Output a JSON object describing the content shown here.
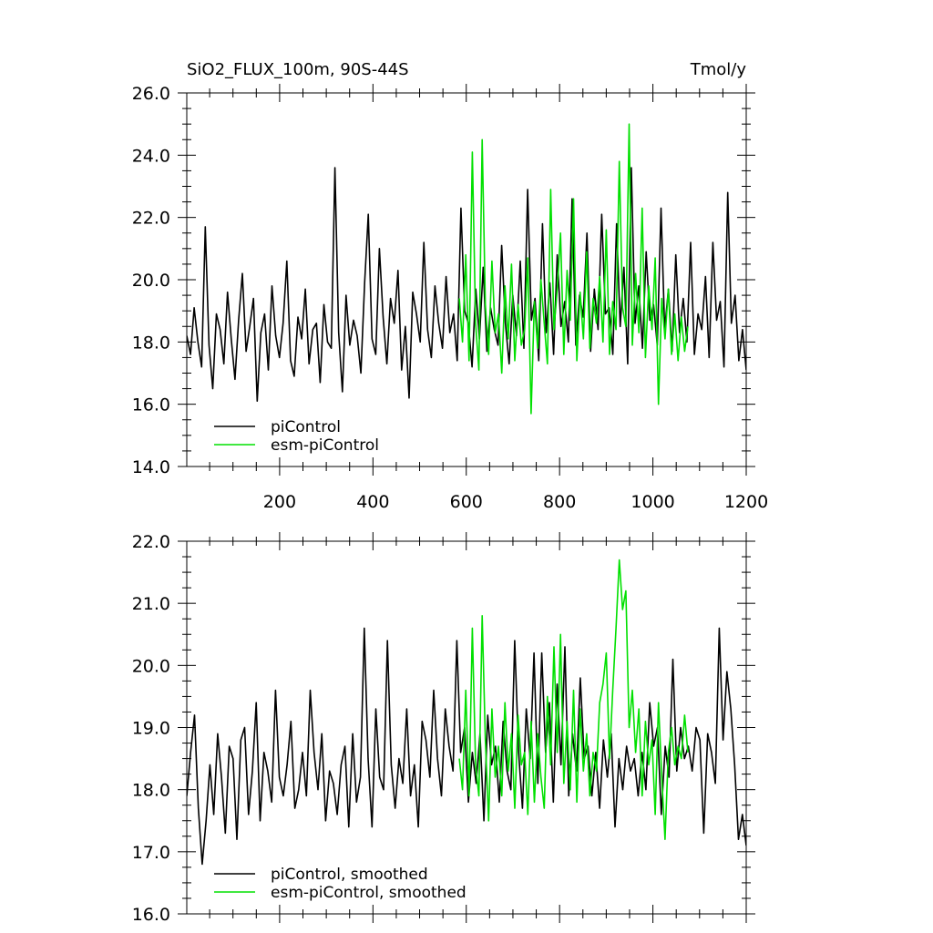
{
  "chart_data": [
    {
      "type": "line",
      "title": "SiO2_FLUX_100m, 90S-44S",
      "units": "Tmol/y",
      "xlim": [
        1,
        1200
      ],
      "ylim": [
        14.0,
        26.0
      ],
      "yticks": [
        "14.0",
        "16.0",
        "18.0",
        "20.0",
        "22.0",
        "24.0",
        "26.0"
      ],
      "xticks": [
        "200",
        "400",
        "600",
        "800",
        "1000",
        "1200"
      ],
      "legend_position": "bottom-left",
      "series": [
        {
          "name": "piControl",
          "color": "#000000",
          "x_start": 1,
          "x_end": 1200,
          "step": 8,
          "values": [
            18.2,
            17.6,
            19.1,
            18.0,
            17.2,
            21.7,
            17.9,
            16.5,
            18.9,
            18.4,
            17.3,
            19.6,
            18.1,
            16.8,
            18.7,
            20.2,
            17.7,
            18.5,
            19.4,
            16.1,
            18.3,
            18.9,
            17.1,
            19.8,
            18.2,
            17.5,
            18.6,
            20.6,
            17.4,
            16.9,
            18.8,
            18.1,
            19.7,
            17.3,
            18.4,
            18.6,
            16.7,
            19.2,
            18.0,
            17.8,
            23.6,
            18.3,
            16.4,
            19.5,
            17.9,
            18.7,
            18.2,
            17.0,
            19.9,
            22.1,
            18.1,
            17.6,
            21.0,
            18.8,
            17.3,
            19.4,
            18.6,
            20.3,
            17.1,
            18.5,
            16.2,
            19.6,
            18.9,
            18.0,
            21.2,
            18.4,
            17.5,
            19.8,
            18.6,
            17.8,
            20.1,
            18.3,
            18.9,
            17.4,
            22.3,
            19.0,
            18.6,
            17.2,
            19.7,
            18.1,
            20.4,
            17.7,
            19.1,
            18.4,
            17.9,
            21.1,
            18.6,
            17.3,
            19.5,
            18.2,
            20.6,
            17.8,
            22.9,
            18.7,
            19.4,
            17.4,
            21.8,
            18.3,
            19.9,
            17.6,
            20.8,
            18.5,
            19.3,
            18.0,
            22.6,
            17.9,
            19.5,
            18.8,
            21.5,
            17.7,
            19.7,
            18.4,
            22.1,
            18.9,
            19.1,
            17.6,
            21.8,
            18.5,
            20.4,
            17.3,
            23.6,
            18.6,
            19.8,
            17.8,
            20.9,
            18.7,
            19.2,
            17.9,
            22.3,
            18.4,
            19.7,
            17.7,
            20.8,
            18.3,
            19.4,
            18.0,
            21.2,
            17.6,
            18.9,
            18.4,
            20.1,
            17.5,
            21.2,
            18.7,
            19.3,
            17.2,
            22.8,
            18.6,
            19.5,
            17.4,
            18.4,
            17.1
          ]
        },
        {
          "name": "esm-piControl",
          "color": "#00e000",
          "x_start": 585,
          "x_end": 1075,
          "step": 7,
          "values": [
            19.4,
            18.0,
            20.8,
            17.4,
            24.1,
            18.6,
            17.1,
            24.5,
            19.2,
            17.6,
            20.6,
            18.3,
            18.9,
            17.0,
            19.8,
            18.1,
            20.5,
            17.4,
            19.2,
            17.9,
            18.4,
            20.7,
            15.7,
            19.3,
            17.8,
            20.0,
            18.6,
            17.3,
            22.9,
            18.4,
            19.7,
            21.5,
            17.6,
            20.3,
            18.7,
            22.6,
            17.4,
            19.6,
            18.1,
            20.9,
            17.8,
            19.4,
            18.6,
            20.1,
            18.0,
            21.6,
            17.6,
            19.3,
            18.4,
            23.8,
            19.1,
            18.5,
            25.0,
            17.9,
            20.2,
            18.3,
            22.3,
            17.5,
            19.8,
            18.4,
            20.7,
            16.0,
            19.4,
            18.1,
            19.7,
            17.6,
            18.9,
            17.4,
            18.8,
            17.7,
            18.5
          ]
        }
      ]
    },
    {
      "type": "line",
      "xlim": [
        1,
        1200
      ],
      "ylim": [
        16.0,
        22.0
      ],
      "yticks": [
        "16.0",
        "17.0",
        "18.0",
        "19.0",
        "20.0",
        "21.0",
        "22.0"
      ],
      "legend_position": "bottom-left",
      "series": [
        {
          "name": "piControl, smoothed",
          "color": "#000000",
          "x_start": 1,
          "x_end": 1200,
          "step": 8,
          "values": [
            17.9,
            18.6,
            19.2,
            17.7,
            16.8,
            17.5,
            18.4,
            17.6,
            18.9,
            18.2,
            17.3,
            18.7,
            18.5,
            17.2,
            18.8,
            19.0,
            17.6,
            18.3,
            19.4,
            17.5,
            18.6,
            18.3,
            17.8,
            19.6,
            18.2,
            17.9,
            18.4,
            19.1,
            17.7,
            18.0,
            18.6,
            17.9,
            19.6,
            18.6,
            18.0,
            18.9,
            17.5,
            18.3,
            18.1,
            17.6,
            18.4,
            18.7,
            17.4,
            18.9,
            17.8,
            18.2,
            20.6,
            18.5,
            17.4,
            19.3,
            18.2,
            18.0,
            20.4,
            18.4,
            17.7,
            18.5,
            18.1,
            19.3,
            17.9,
            18.4,
            17.4,
            19.1,
            18.8,
            18.2,
            19.6,
            18.5,
            17.9,
            19.3,
            18.7,
            18.3,
            20.4,
            18.6,
            19.0,
            17.8,
            18.6,
            18.1,
            18.9,
            17.5,
            19.2,
            18.4,
            18.7,
            17.8,
            19.1,
            18.3,
            18.0,
            20.4,
            18.6,
            17.7,
            19.3,
            18.5,
            20.2,
            18.1,
            20.2,
            18.6,
            19.4,
            17.8,
            19.7,
            18.4,
            20.3,
            17.9,
            18.9,
            18.3,
            19.8,
            18.5,
            18.7,
            17.9,
            18.6,
            17.7,
            18.8,
            18.2,
            18.9,
            17.4,
            18.5,
            18.0,
            18.7,
            18.3,
            18.5,
            17.9,
            18.6,
            18.0,
            19.4,
            18.7,
            19.0,
            17.6,
            18.7,
            18.2,
            20.1,
            18.3,
            19.0,
            18.5,
            18.7,
            18.3,
            19.0,
            18.8,
            17.3,
            18.9,
            18.6,
            18.1,
            20.6,
            18.8,
            19.9,
            19.3,
            18.4,
            17.2,
            17.6,
            17.1
          ]
        },
        {
          "name": "esm-piControl, smoothed",
          "color": "#00e000",
          "x_start": 585,
          "x_end": 1075,
          "step": 7,
          "values": [
            18.5,
            18.0,
            19.6,
            17.9,
            20.6,
            18.4,
            17.9,
            20.8,
            18.8,
            17.5,
            19.3,
            18.2,
            18.7,
            17.9,
            19.4,
            18.3,
            18.9,
            17.7,
            19.2,
            18.4,
            18.6,
            17.6,
            19.1,
            17.8,
            18.9,
            18.2,
            17.7,
            19.5,
            18.4,
            20.3,
            18.6,
            20.5,
            18.1,
            19.1,
            18.0,
            19.6,
            17.8,
            19.3,
            18.3,
            18.9,
            17.9,
            18.6,
            18.3,
            19.4,
            19.7,
            20.2,
            18.5,
            19.6,
            20.6,
            21.7,
            20.9,
            21.2,
            19.0,
            19.6,
            18.6,
            19.3,
            17.9,
            19.1,
            18.4,
            18.8,
            17.6,
            19.4,
            18.2,
            17.2,
            18.6,
            19.0,
            18.4,
            18.7,
            18.5,
            19.2,
            18.6
          ]
        }
      ]
    }
  ]
}
